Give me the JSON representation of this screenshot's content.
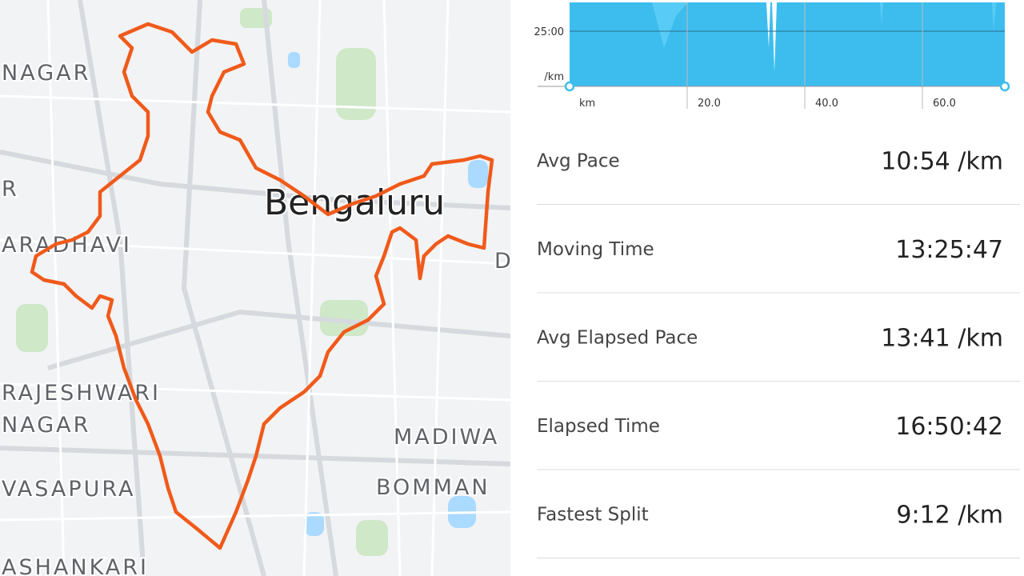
{
  "map": {
    "labels": [
      "NAGAR",
      "R",
      "ARADHAVI",
      "Bengaluru",
      "RAJESHWARI",
      "NAGAR",
      "MADIWA",
      "BOMMAN",
      "VASAPURA",
      "ASHANKARI",
      "D"
    ]
  },
  "pace_chart": {
    "y_labels": [
      "25:00",
      "/km"
    ],
    "x_labels": [
      "km",
      "20.0",
      "40.0",
      "60.0"
    ]
  },
  "stats": [
    {
      "label": "Avg Pace",
      "value": "10:54 /km"
    },
    {
      "label": "Moving Time",
      "value": "13:25:47"
    },
    {
      "label": "Avg Elapsed Pace",
      "value": "13:41 /km"
    },
    {
      "label": "Elapsed Time",
      "value": "16:50:42"
    },
    {
      "label": "Fastest Split",
      "value": "9:12 /km"
    }
  ]
}
